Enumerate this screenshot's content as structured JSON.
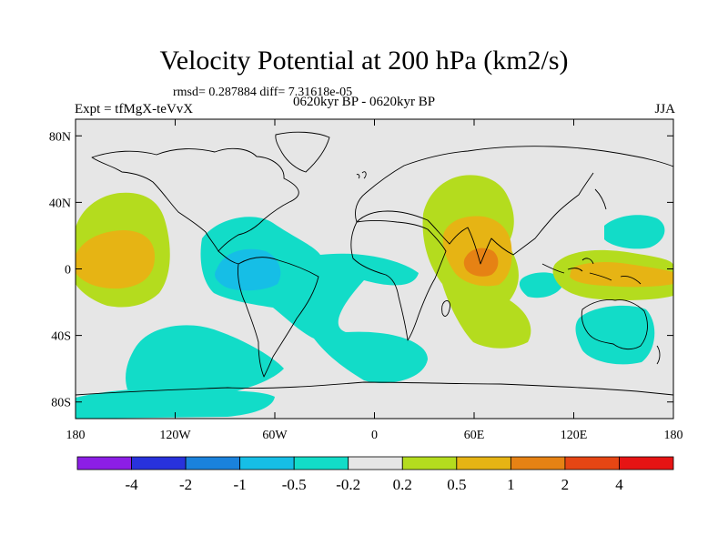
{
  "title": "Velocity Potential at 200 hPa (km2/s)",
  "stats": "rmsd= 0.287884 diff= 7.31618e-05",
  "left_label": "Expt = tfMgX-teVvX",
  "center_label": "0620kyr BP - 0620kyr BP",
  "right_label": "JJA",
  "x_ticks": [
    {
      "value": -180,
      "label": "180"
    },
    {
      "value": -120,
      "label": "120W"
    },
    {
      "value": -60,
      "label": "60W"
    },
    {
      "value": 0,
      "label": "0"
    },
    {
      "value": 60,
      "label": "60E"
    },
    {
      "value": 120,
      "label": "120E"
    },
    {
      "value": 180,
      "label": "180"
    }
  ],
  "y_ticks": [
    {
      "value": 80,
      "label": "80N"
    },
    {
      "value": 40,
      "label": "40N"
    },
    {
      "value": 0,
      "label": "0"
    },
    {
      "value": -40,
      "label": "40S"
    },
    {
      "value": -80,
      "label": "80S"
    }
  ],
  "colorbar": {
    "colors": [
      "#8c1ee6",
      "#2832dc",
      "#1a82dc",
      "#16bee6",
      "#12dcc8",
      "#e6e6e6",
      "#b4dc1e",
      "#e6b414",
      "#e68214",
      "#e64614",
      "#e61414"
    ],
    "levels": [
      {
        "value": -4,
        "label": "-4"
      },
      {
        "value": -2,
        "label": "-2"
      },
      {
        "value": -1,
        "label": "-1"
      },
      {
        "value": -0.5,
        "label": "-0.5"
      },
      {
        "value": -0.2,
        "label": "-0.2"
      },
      {
        "value": 0.2,
        "label": "0.2"
      },
      {
        "value": 0.5,
        "label": "0.5"
      },
      {
        "value": 1,
        "label": "1"
      },
      {
        "value": 2,
        "label": "2"
      },
      {
        "value": 4,
        "label": "4"
      }
    ]
  },
  "map_colors": {
    "background": "#e6e6e6",
    "coast": "#000000",
    "neg1": "#12dcc8",
    "neg2": "#16bee6",
    "pos1": "#b4dc1e",
    "pos2": "#e6b414",
    "pos3": "#e68214"
  }
}
